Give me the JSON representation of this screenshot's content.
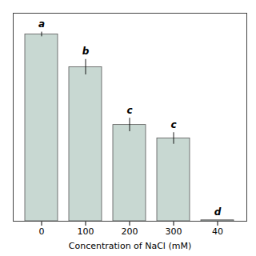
{
  "chart_data": {
    "type": "bar",
    "xlabel": "Concentration of NaCl (mM)",
    "categories": [
      "0",
      "100",
      "200",
      "300",
      "40"
    ],
    "values": [
      97,
      80,
      50,
      43,
      0.5
    ],
    "errors": [
      1.2,
      4.0,
      3.5,
      3.0,
      0
    ],
    "letters": [
      "a",
      "b",
      "c",
      "c",
      "d"
    ],
    "color": "#c8d8d2",
    "ylim": [
      0,
      108
    ],
    "yticks": [],
    "grid": false,
    "tick_labels": "x"
  }
}
